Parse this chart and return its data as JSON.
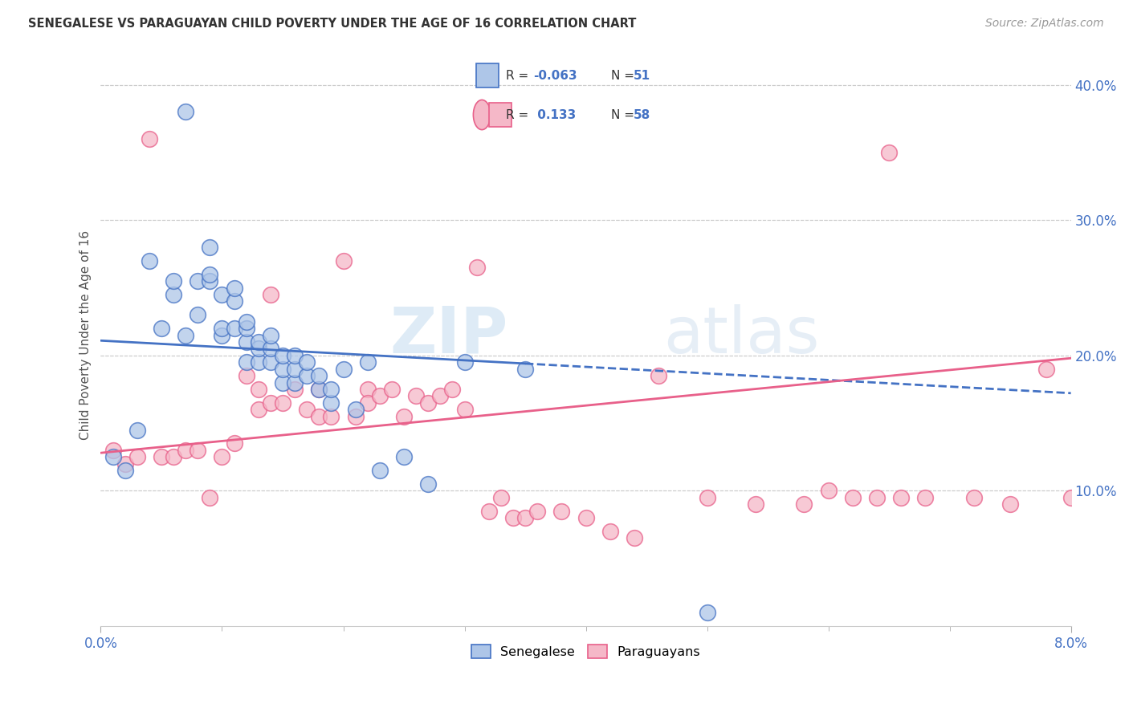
{
  "title": "SENEGALESE VS PARAGUAYAN CHILD POVERTY UNDER THE AGE OF 16 CORRELATION CHART",
  "source": "Source: ZipAtlas.com",
  "ylabel": "Child Poverty Under the Age of 16",
  "xlim": [
    0.0,
    0.08
  ],
  "ylim": [
    0.0,
    0.43
  ],
  "yticks": [
    0.1,
    0.2,
    0.3,
    0.4
  ],
  "ytick_labels": [
    "10.0%",
    "20.0%",
    "30.0%",
    "40.0%"
  ],
  "r1": -0.063,
  "n1": 51,
  "r2": 0.133,
  "n2": 58,
  "color_blue": "#aec6e8",
  "color_pink": "#f5b8c8",
  "color_blue_line": "#4472c4",
  "color_pink_line": "#e8608a",
  "color_axis_label": "#4472c4",
  "background_color": "#ffffff",
  "watermark_zip": "ZIP",
  "watermark_atlas": "atlas",
  "blue_line_x0": 0.0,
  "blue_line_y0": 0.211,
  "blue_line_x1": 0.035,
  "blue_line_y1": 0.194,
  "pink_line_x0": 0.0,
  "pink_line_y0": 0.128,
  "pink_line_x1": 0.08,
  "pink_line_y1": 0.198,
  "senegalese_x": [
    0.001,
    0.002,
    0.003,
    0.004,
    0.005,
    0.006,
    0.006,
    0.007,
    0.007,
    0.008,
    0.008,
    0.009,
    0.009,
    0.009,
    0.01,
    0.01,
    0.01,
    0.011,
    0.011,
    0.011,
    0.012,
    0.012,
    0.012,
    0.012,
    0.013,
    0.013,
    0.013,
    0.014,
    0.014,
    0.014,
    0.015,
    0.015,
    0.015,
    0.016,
    0.016,
    0.016,
    0.017,
    0.017,
    0.018,
    0.018,
    0.019,
    0.019,
    0.02,
    0.021,
    0.022,
    0.023,
    0.025,
    0.027,
    0.03,
    0.035,
    0.05
  ],
  "senegalese_y": [
    0.125,
    0.115,
    0.145,
    0.27,
    0.22,
    0.245,
    0.255,
    0.38,
    0.215,
    0.255,
    0.23,
    0.255,
    0.26,
    0.28,
    0.215,
    0.22,
    0.245,
    0.22,
    0.24,
    0.25,
    0.195,
    0.21,
    0.22,
    0.225,
    0.195,
    0.205,
    0.21,
    0.195,
    0.205,
    0.215,
    0.18,
    0.19,
    0.2,
    0.18,
    0.19,
    0.2,
    0.185,
    0.195,
    0.175,
    0.185,
    0.165,
    0.175,
    0.19,
    0.16,
    0.195,
    0.115,
    0.125,
    0.105,
    0.195,
    0.19,
    0.01
  ],
  "paraguayan_x": [
    0.001,
    0.002,
    0.003,
    0.004,
    0.005,
    0.006,
    0.007,
    0.008,
    0.009,
    0.01,
    0.011,
    0.012,
    0.013,
    0.013,
    0.014,
    0.014,
    0.015,
    0.016,
    0.017,
    0.018,
    0.018,
    0.019,
    0.02,
    0.021,
    0.022,
    0.022,
    0.023,
    0.024,
    0.025,
    0.026,
    0.027,
    0.028,
    0.029,
    0.03,
    0.031,
    0.032,
    0.033,
    0.034,
    0.035,
    0.036,
    0.038,
    0.04,
    0.042,
    0.044,
    0.046,
    0.05,
    0.054,
    0.058,
    0.06,
    0.062,
    0.064,
    0.065,
    0.066,
    0.068,
    0.072,
    0.075,
    0.078,
    0.08
  ],
  "paraguayan_y": [
    0.13,
    0.12,
    0.125,
    0.36,
    0.125,
    0.125,
    0.13,
    0.13,
    0.095,
    0.125,
    0.135,
    0.185,
    0.16,
    0.175,
    0.245,
    0.165,
    0.165,
    0.175,
    0.16,
    0.175,
    0.155,
    0.155,
    0.27,
    0.155,
    0.175,
    0.165,
    0.17,
    0.175,
    0.155,
    0.17,
    0.165,
    0.17,
    0.175,
    0.16,
    0.265,
    0.085,
    0.095,
    0.08,
    0.08,
    0.085,
    0.085,
    0.08,
    0.07,
    0.065,
    0.185,
    0.095,
    0.09,
    0.09,
    0.1,
    0.095,
    0.095,
    0.35,
    0.095,
    0.095,
    0.095,
    0.09,
    0.19,
    0.095
  ]
}
